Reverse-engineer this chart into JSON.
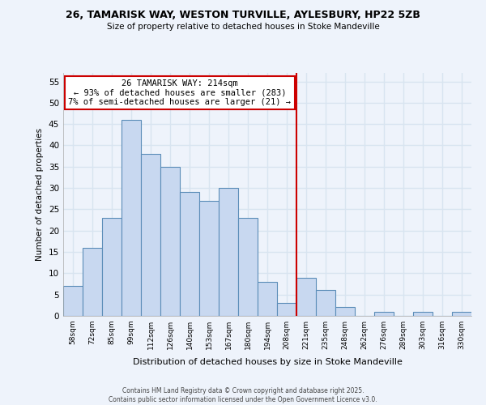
{
  "title1": "26, TAMARISK WAY, WESTON TURVILLE, AYLESBURY, HP22 5ZB",
  "title2": "Size of property relative to detached houses in Stoke Mandeville",
  "xlabel": "Distribution of detached houses by size in Stoke Mandeville",
  "ylabel": "Number of detached properties",
  "bin_labels": [
    "58sqm",
    "72sqm",
    "85sqm",
    "99sqm",
    "112sqm",
    "126sqm",
    "140sqm",
    "153sqm",
    "167sqm",
    "180sqm",
    "194sqm",
    "208sqm",
    "221sqm",
    "235sqm",
    "248sqm",
    "262sqm",
    "276sqm",
    "289sqm",
    "303sqm",
    "316sqm",
    "330sqm"
  ],
  "bar_heights": [
    7,
    16,
    23,
    46,
    38,
    35,
    29,
    27,
    30,
    23,
    8,
    3,
    9,
    6,
    2,
    0,
    1,
    0,
    1,
    0,
    1
  ],
  "bar_color": "#c8d8f0",
  "bar_edge_color": "#5b8db8",
  "vline_x": 11.5,
  "vline_color": "#cc0000",
  "annotation_title": "26 TAMARISK WAY: 214sqm",
  "annotation_line1": "← 93% of detached houses are smaller (283)",
  "annotation_line2": "7% of semi-detached houses are larger (21) →",
  "annotation_box_color": "#ffffff",
  "annotation_box_edge": "#cc0000",
  "ylim": [
    0,
    57
  ],
  "yticks": [
    0,
    5,
    10,
    15,
    20,
    25,
    30,
    35,
    40,
    45,
    50,
    55
  ],
  "footer1": "Contains HM Land Registry data © Crown copyright and database right 2025.",
  "footer2": "Contains public sector information licensed under the Open Government Licence v3.0.",
  "bg_color": "#eef3fb",
  "grid_color": "#d8e4f0"
}
